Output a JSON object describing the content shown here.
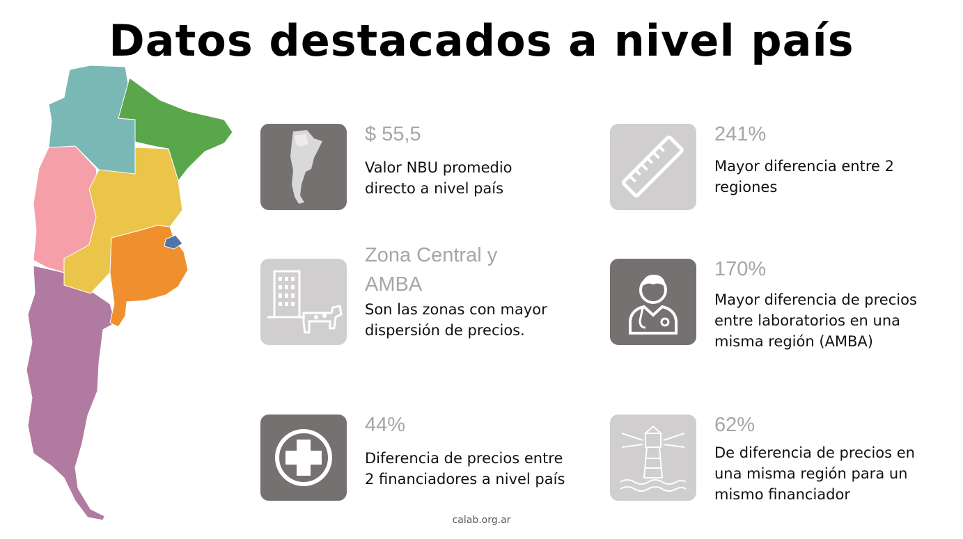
{
  "title": "Datos destacados a nivel país",
  "colors": {
    "tile_dark": "#767171",
    "tile_light": "#d0cece",
    "region_noa": "#7ab8b5",
    "region_nea": "#5aa64b",
    "region_cuyo": "#f5a0a8",
    "region_centro": "#ebc54a",
    "region_bsas": "#f08f2e",
    "region_amba": "#4f76a6",
    "region_patagonia": "#b07aa1"
  },
  "stats": [
    {
      "icon": "argentina-map-icon",
      "figure": "$ 55,5",
      "description": [
        "Valor NBU promedio",
        "directo a nivel país"
      ]
    },
    {
      "icon": "ruler-icon",
      "figure": "241%",
      "description": [
        "Mayor diferencia entre 2",
        "regiones"
      ]
    },
    {
      "icon": "building-cow-icon",
      "figure": "Zona Central y AMBA",
      "description": [
        "Son las zonas con mayor",
        "dispersión de precios."
      ]
    },
    {
      "icon": "doctor-icon",
      "figure": "170%",
      "description": [
        "Mayor diferencia de precios",
        "entre laboratorios en una",
        "misma región (AMBA)"
      ]
    },
    {
      "icon": "medical-cross-icon",
      "figure": "44%",
      "description": [
        "Diferencia de precios entre",
        "2 financiadores a nivel país"
      ]
    },
    {
      "icon": "lighthouse-icon",
      "figure": "62%",
      "description": [
        "De diferencia de precios en",
        "una misma región para un",
        "mismo financiador"
      ]
    }
  ],
  "footer": "calab.org.ar"
}
